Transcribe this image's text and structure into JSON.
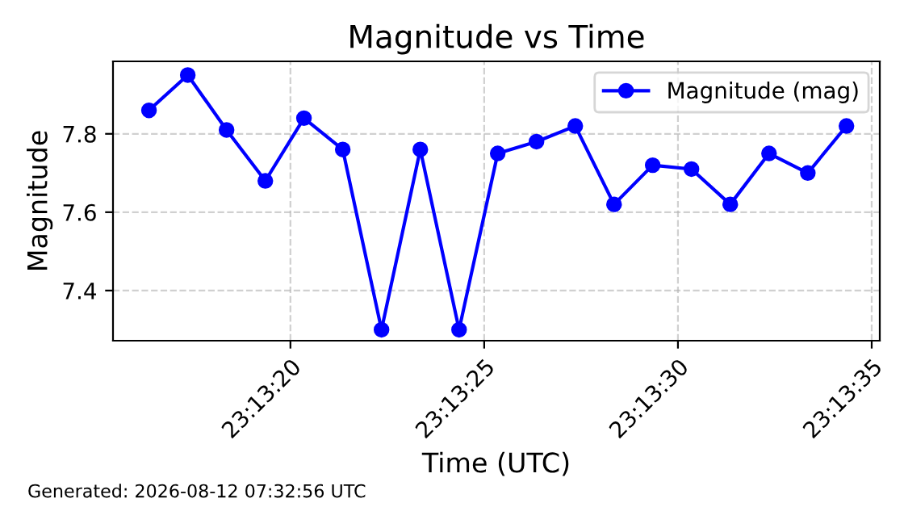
{
  "chart_data": {
    "type": "line",
    "title": "Magnitude vs Time",
    "xlabel": "Time (UTC)",
    "ylabel": "Magnitude",
    "x": [
      23.221208,
      23.221486,
      23.221764,
      23.222042,
      23.222319,
      23.222597,
      23.222875,
      23.223153,
      23.223431,
      23.223708,
      23.223986,
      23.224264,
      23.224542,
      23.224819,
      23.225097,
      23.225375,
      23.225653,
      23.225931,
      23.226208
    ],
    "series": [
      {
        "name": "Magnitude (mag)",
        "color": "#0000ff",
        "values": [
          7.86,
          7.95,
          7.81,
          7.68,
          7.84,
          7.76,
          7.3,
          7.76,
          7.3,
          7.75,
          7.78,
          7.82,
          7.62,
          7.72,
          7.71,
          7.62,
          7.75,
          7.7,
          7.82
        ]
      }
    ],
    "xlim": [
      23.22095,
      23.226447
    ],
    "xticks": [
      {
        "value": 23.222222,
        "label": "23:13:20"
      },
      {
        "value": 23.223611,
        "label": "23:13:25"
      },
      {
        "value": 23.225,
        "label": "23:13:30"
      },
      {
        "value": 23.226389,
        "label": "23:13:35"
      }
    ],
    "ylim": [
      7.272,
      7.985
    ],
    "yticks": [
      7.4,
      7.6,
      7.8
    ],
    "grid": true,
    "legend": "top right",
    "marker": "circle",
    "line_style": "solid",
    "annotations": [
      "Generated: 2026-08-12 07:32:56 UTC"
    ]
  }
}
